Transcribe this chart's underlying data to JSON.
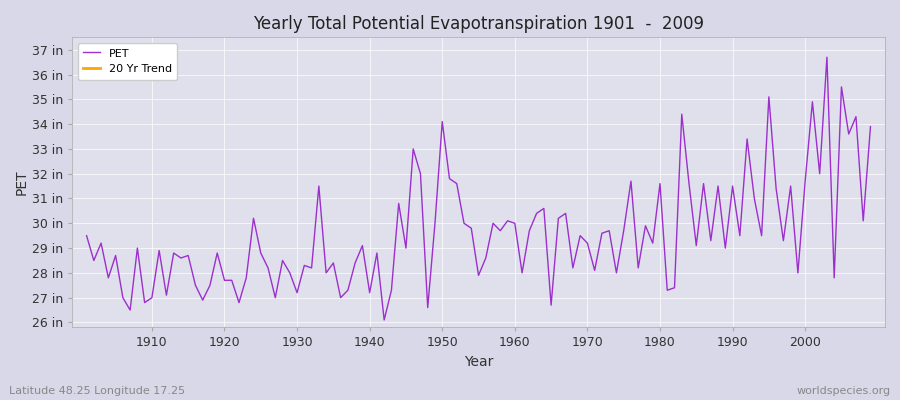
{
  "title": "Yearly Total Potential Evapotranspiration 1901  -  2009",
  "xlabel": "Year",
  "ylabel": "PET",
  "subtitle_left": "Latitude 48.25 Longitude 17.25",
  "subtitle_right": "worldspecies.org",
  "pet_color": "#9B30CC",
  "trend_color": "#FFA500",
  "background_color": "#D8D8E8",
  "plot_bg_color": "#E0E0EC",
  "years": [
    1901,
    1902,
    1903,
    1904,
    1905,
    1906,
    1907,
    1908,
    1909,
    1910,
    1911,
    1912,
    1913,
    1914,
    1915,
    1916,
    1917,
    1918,
    1919,
    1920,
    1921,
    1922,
    1923,
    1924,
    1925,
    1926,
    1927,
    1928,
    1929,
    1930,
    1931,
    1932,
    1933,
    1934,
    1935,
    1936,
    1937,
    1938,
    1939,
    1940,
    1941,
    1942,
    1943,
    1944,
    1945,
    1946,
    1947,
    1948,
    1949,
    1950,
    1951,
    1952,
    1953,
    1954,
    1955,
    1956,
    1957,
    1958,
    1959,
    1960,
    1961,
    1962,
    1963,
    1964,
    1965,
    1966,
    1967,
    1968,
    1969,
    1970,
    1971,
    1972,
    1973,
    1974,
    1975,
    1976,
    1977,
    1978,
    1979,
    1980,
    1981,
    1982,
    1983,
    1984,
    1985,
    1986,
    1987,
    1988,
    1989,
    1990,
    1991,
    1992,
    1993,
    1994,
    1995,
    1996,
    1997,
    1998,
    1999,
    2000,
    2001,
    2002,
    2003,
    2004,
    2005,
    2006,
    2007,
    2008,
    2009
  ],
  "pet_values": [
    29.5,
    28.5,
    29.2,
    27.8,
    28.7,
    27.0,
    26.5,
    29.0,
    26.8,
    27.0,
    28.9,
    27.1,
    28.8,
    28.6,
    28.7,
    27.5,
    26.9,
    27.5,
    28.8,
    27.7,
    27.7,
    26.8,
    27.8,
    30.2,
    28.8,
    28.2,
    27.0,
    28.5,
    28.0,
    27.2,
    28.3,
    28.2,
    31.5,
    28.0,
    28.4,
    27.0,
    27.3,
    28.4,
    29.1,
    27.2,
    28.8,
    26.1,
    27.3,
    30.8,
    29.0,
    33.0,
    32.0,
    26.6,
    30.0,
    34.1,
    31.8,
    31.6,
    30.0,
    29.8,
    27.9,
    28.6,
    30.0,
    29.7,
    30.1,
    30.0,
    28.0,
    29.7,
    30.4,
    30.6,
    26.7,
    30.2,
    30.4,
    28.2,
    29.5,
    29.2,
    28.1,
    29.6,
    29.7,
    28.0,
    29.7,
    31.7,
    28.2,
    29.9,
    29.2,
    31.6,
    27.3,
    27.4,
    34.4,
    31.6,
    29.1,
    31.6,
    29.3,
    31.5,
    29.0,
    31.5,
    29.5,
    33.4,
    31.0,
    29.5,
    35.1,
    31.4,
    29.3,
    31.5,
    28.0,
    31.7,
    34.9,
    32.0,
    36.7,
    27.8,
    35.5,
    33.6,
    34.3,
    30.1,
    33.9
  ],
  "ylim": [
    25.8,
    37.5
  ],
  "yticks": [
    26,
    27,
    28,
    29,
    30,
    31,
    32,
    33,
    34,
    35,
    36,
    37
  ],
  "ytick_labels": [
    "26 in",
    "27 in",
    "28 in",
    "29 in",
    "30 in",
    "31 in",
    "32 in",
    "33 in",
    "34 in",
    "35 in",
    "36 in",
    "37 in"
  ],
  "xlim": [
    1899,
    2011
  ],
  "xticks": [
    1910,
    1920,
    1930,
    1940,
    1950,
    1960,
    1970,
    1980,
    1990,
    2000
  ],
  "trend_window": 20
}
